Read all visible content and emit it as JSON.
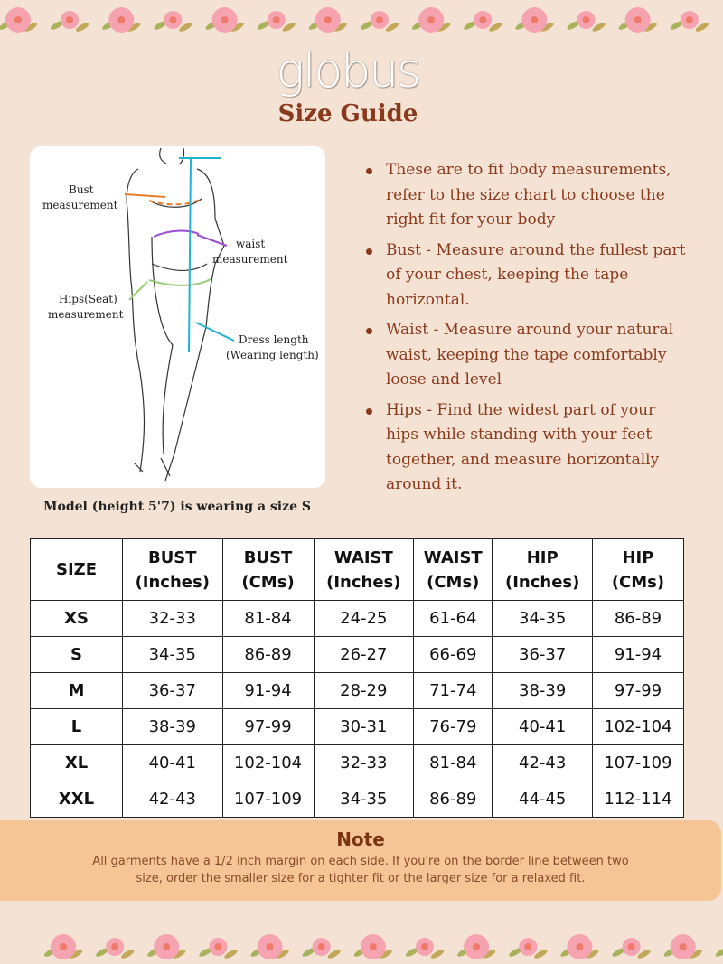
{
  "brand": "globus",
  "title": "Size Guide",
  "figure": {
    "labels": {
      "bust": [
        "Bust",
        "measurement"
      ],
      "waist": [
        "waist",
        "measurement"
      ],
      "hips": [
        "Hips(Seat)",
        "measurement"
      ],
      "length": [
        "Dress length",
        "(Wearing length)"
      ]
    },
    "colors": {
      "bust": "#e87d2a",
      "waist": "#9b4fd0",
      "hips": "#9ccc7a",
      "length": "#1fb3d1"
    }
  },
  "caption": "Model (height 5'7) is wearing a size S",
  "bullets": [
    "These are to fit body measurements, refer to the size chart to choose the right fit for your body",
    "Bust - Measure around the fullest part of your chest, keeping the tape horizontal.",
    "Waist - Measure around your natural waist, keeping the tape comfortably loose and level",
    "Hips - Find the widest part of your hips while standing with your feet together, and measure horizontally around it."
  ],
  "table": {
    "headers": [
      [
        "SIZE"
      ],
      [
        "BUST",
        "(Inches)"
      ],
      [
        "BUST",
        "(CMs)"
      ],
      [
        "WAIST",
        "(Inches)"
      ],
      [
        "WAIST",
        "(CMs)"
      ],
      [
        "HIP",
        "(Inches)"
      ],
      [
        "HIP",
        "(CMs)"
      ]
    ],
    "rows": [
      [
        "XS",
        "32-33",
        "81-84",
        "24-25",
        "61-64",
        "34-35",
        "86-89"
      ],
      [
        "S",
        "34-35",
        "86-89",
        "26-27",
        "66-69",
        "36-37",
        "91-94"
      ],
      [
        "M",
        "36-37",
        "91-94",
        "28-29",
        "71-74",
        "38-39",
        "97-99"
      ],
      [
        "L",
        "38-39",
        "97-99",
        "30-31",
        "76-79",
        "40-41",
        "102-104"
      ],
      [
        "XL",
        "40-41",
        "102-104",
        "32-33",
        "81-84",
        "42-43",
        "107-109"
      ],
      [
        "XXL",
        "42-43",
        "107-109",
        "34-35",
        "86-89",
        "44-45",
        "112-114"
      ]
    ]
  },
  "note": {
    "title": "Note",
    "text": "All garments have a 1/2 inch margin on each side. If you're on the border line between two size, order the smaller size for a tighter fit or the larger size for a relaxed fit."
  }
}
